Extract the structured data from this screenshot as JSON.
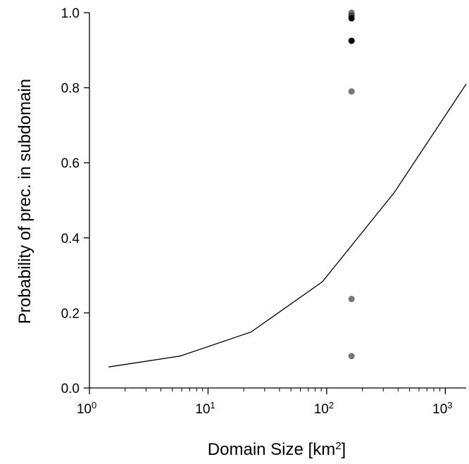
{
  "chart_data": {
    "type": "line",
    "xlabel": "Domain Size [km",
    "xlabel_sup": "2",
    "xlabel_end": "]",
    "ylabel": "Probability of prec. in subdomain",
    "xscale": "log",
    "xlim": [
      1,
      1500
    ],
    "ylim": [
      0,
      1.0
    ],
    "x_ticks": [
      {
        "base": "10",
        "exp": "0",
        "value": 1
      },
      {
        "base": "10",
        "exp": "1",
        "value": 10
      },
      {
        "base": "10",
        "exp": "2",
        "value": 100
      },
      {
        "base": "10",
        "exp": "3",
        "value": 1000
      }
    ],
    "y_ticks": [
      "0.0",
      "0.2",
      "0.4",
      "0.6",
      "0.8",
      "1.0"
    ],
    "grid": false,
    "line": {
      "x": [
        1.45,
        5.8,
        23,
        92,
        370,
        1500
      ],
      "y": [
        0.056,
        0.085,
        0.149,
        0.283,
        0.52,
        0.81
      ],
      "color": "#000000"
    },
    "points": [
      {
        "x": 162,
        "y": 1.0,
        "color": "#777777"
      },
      {
        "x": 162,
        "y": 0.993,
        "color": "#444444"
      },
      {
        "x": 162,
        "y": 0.985,
        "color": "#000000"
      },
      {
        "x": 162,
        "y": 0.925,
        "color": "#000000"
      },
      {
        "x": 162,
        "y": 0.79,
        "color": "#777777"
      },
      {
        "x": 162,
        "y": 0.237,
        "color": "#777777"
      },
      {
        "x": 162,
        "y": 0.085,
        "color": "#777777"
      }
    ]
  }
}
